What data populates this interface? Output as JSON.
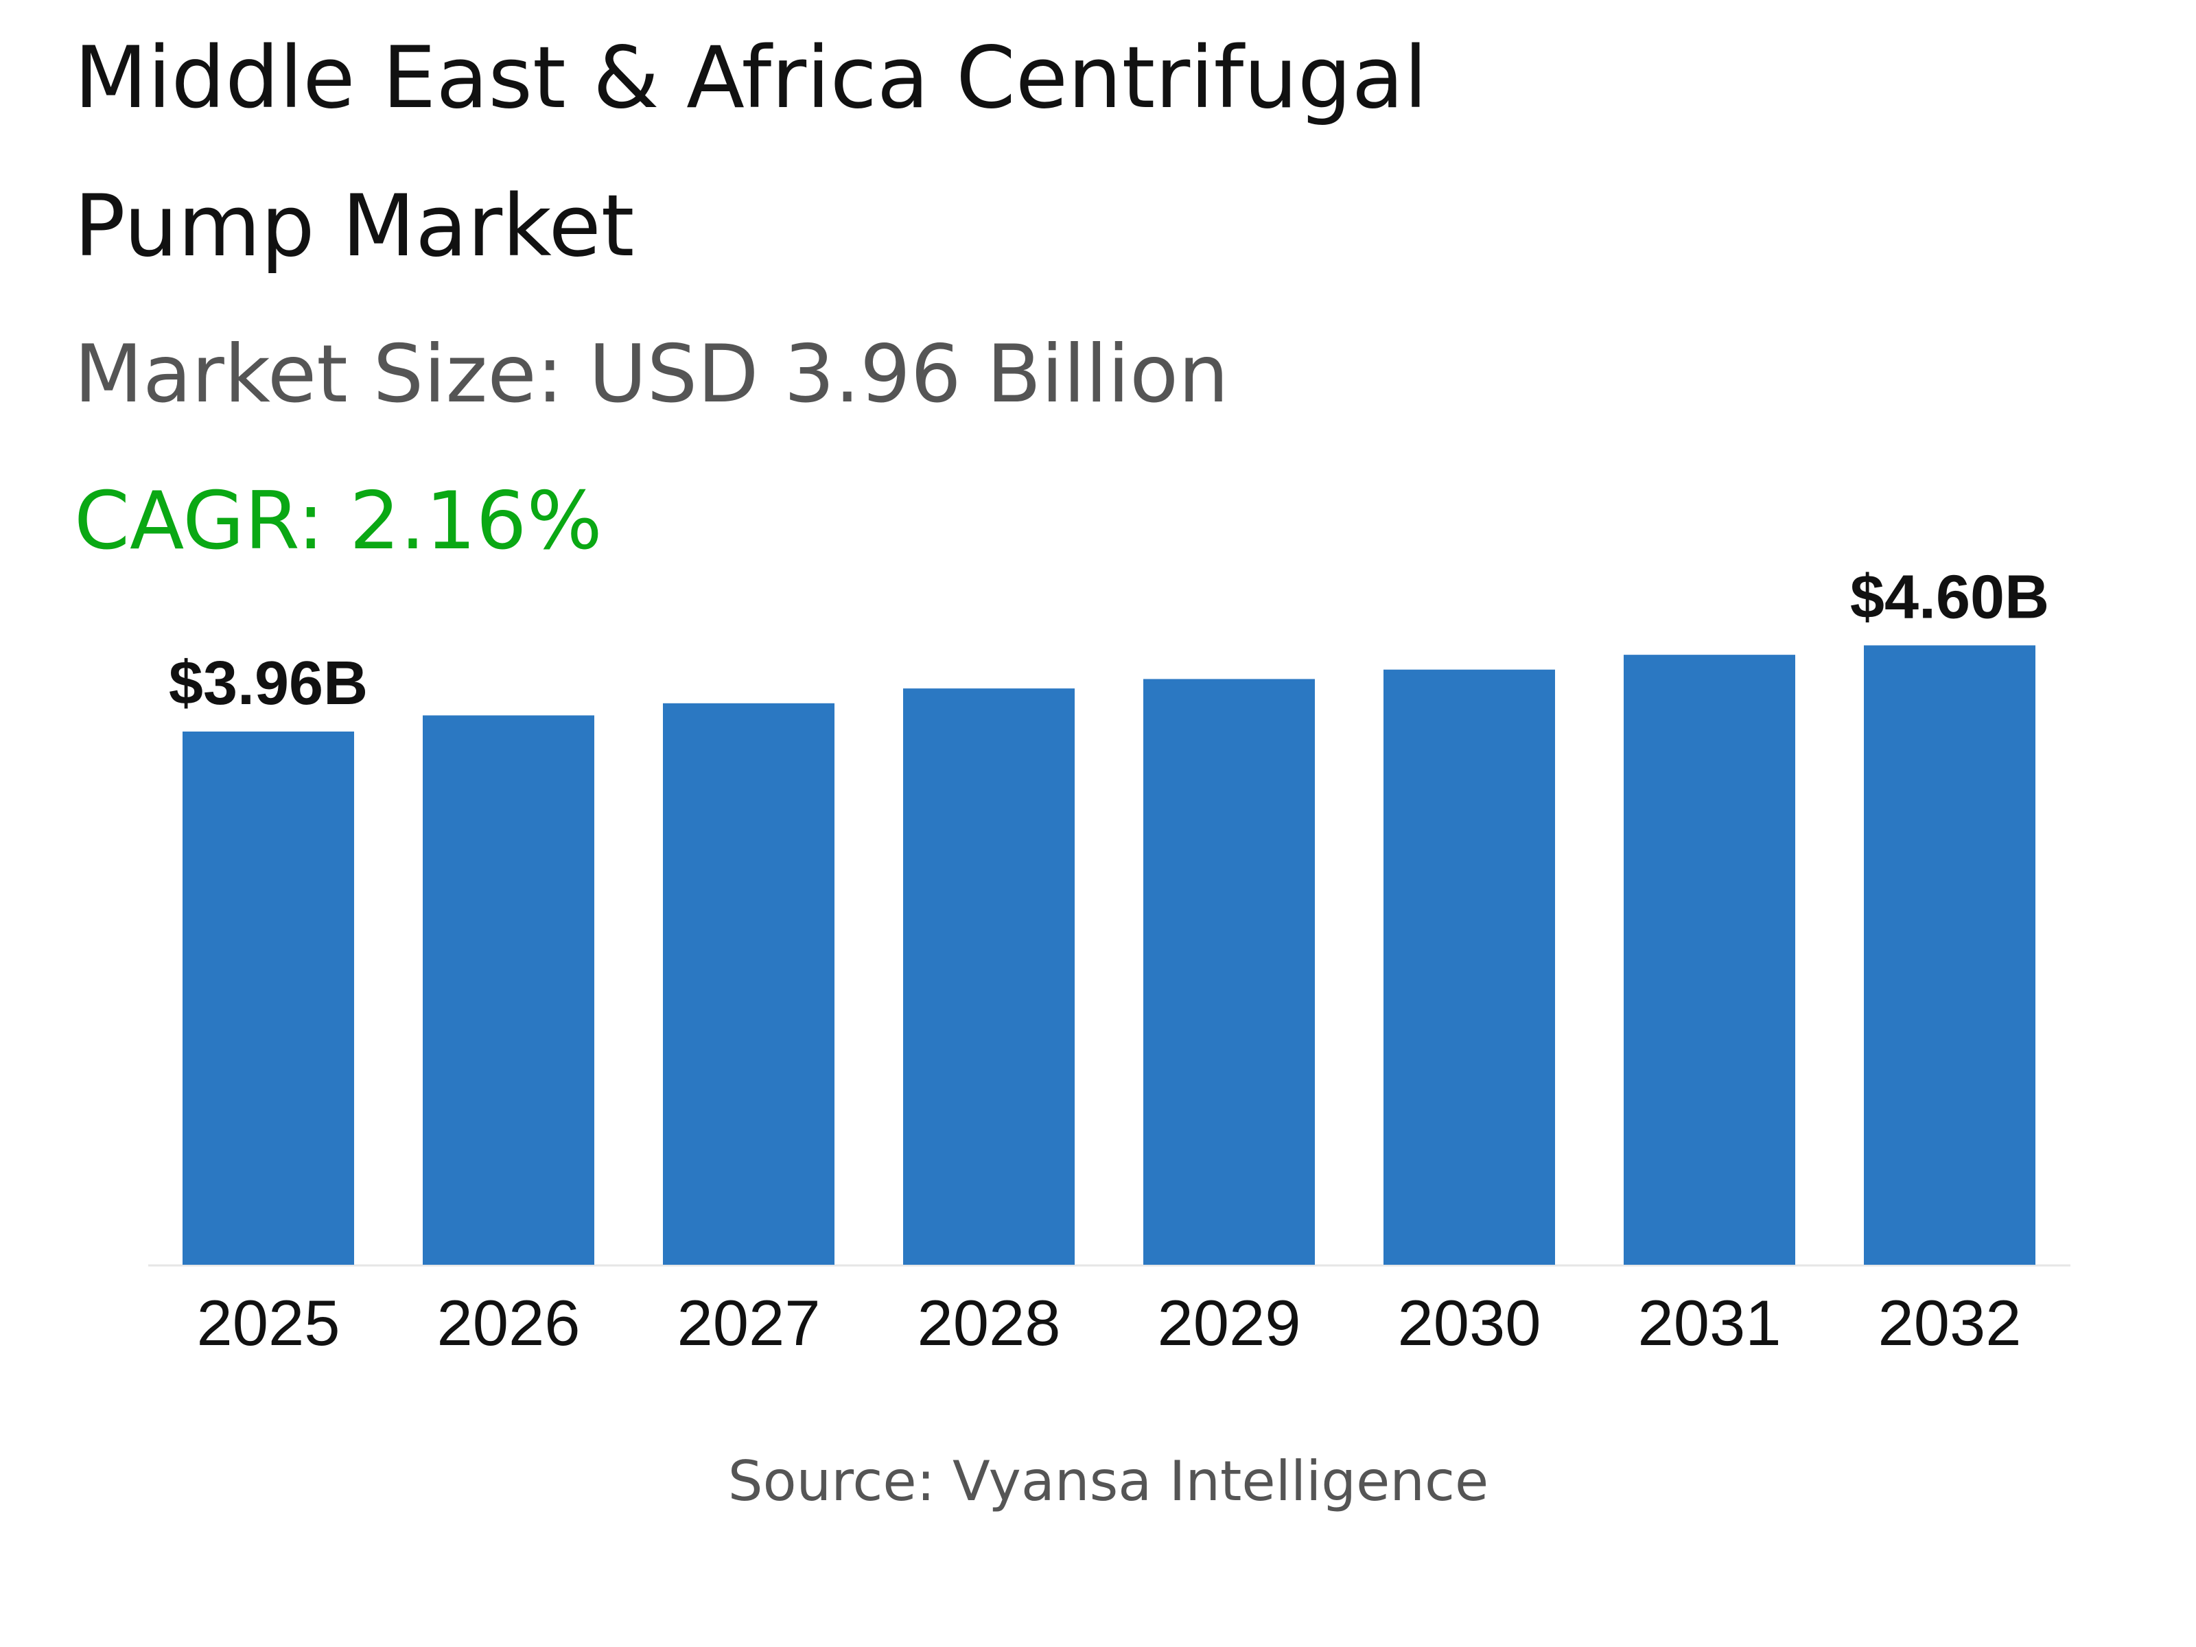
{
  "title_line1": "Middle East & Africa Centrifugal",
  "title_line2": "Pump Market",
  "subtitle": "Market Size: USD 3.96 Billion",
  "cagr": "CAGR: 2.16%",
  "source": "Source: Vyansa Intelligence",
  "colors": {
    "bar": "#2b78c2",
    "cagr": "#0aa814",
    "subtitle": "#555555"
  },
  "chart_data": {
    "type": "bar",
    "title": "Middle East & Africa Centrifugal Pump Market",
    "categories": [
      "2025",
      "2026",
      "2027",
      "2028",
      "2029",
      "2030",
      "2031",
      "2032"
    ],
    "values": [
      3.96,
      4.08,
      4.17,
      4.28,
      4.35,
      4.42,
      4.53,
      4.6
    ],
    "data_labels": {
      "0": "$3.96B",
      "7": "$4.60B"
    },
    "unit": "USD Billion",
    "ylim": [
      0,
      4.6
    ],
    "grid": false,
    "legend": "none"
  }
}
